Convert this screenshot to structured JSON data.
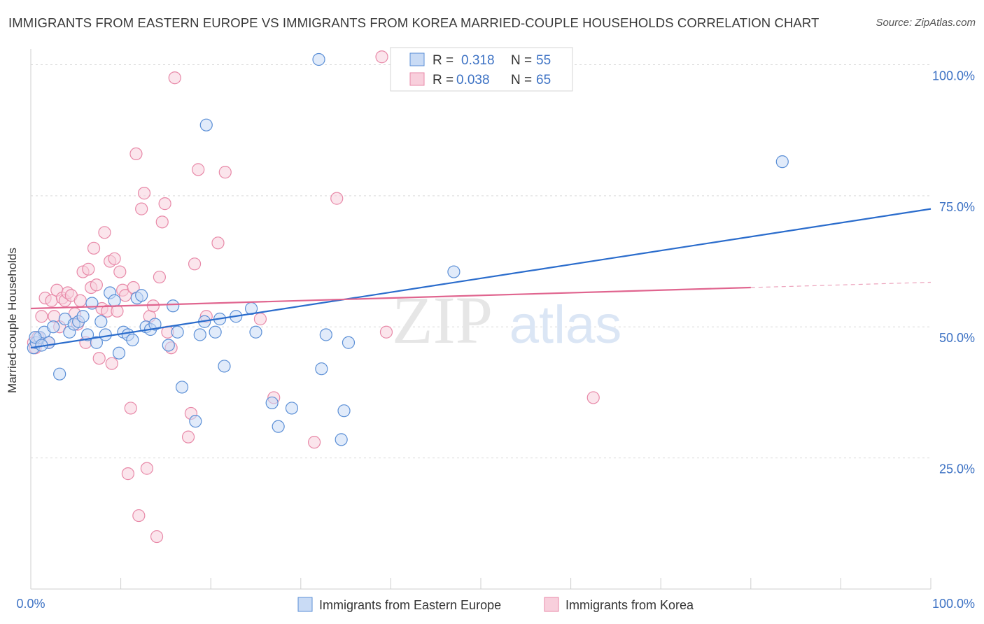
{
  "header": {
    "title": "IMMIGRANTS FROM EASTERN EUROPE VS IMMIGRANTS FROM KOREA MARRIED-COUPLE HOUSEHOLDS CORRELATION CHART",
    "source": "Source: ZipAtlas.com"
  },
  "watermark": {
    "zip": "ZIP",
    "atlas": "atlas"
  },
  "colors": {
    "blue": "#5b8fd6",
    "blue_fill": "#c9dbf5",
    "blue_line": "#2a6ccc",
    "pink": "#e889a8",
    "pink_fill": "#f8cfdc",
    "pink_line": "#e0658f",
    "tick_text": "#3d72c4",
    "grid": "#d9d9d9"
  },
  "legend": {
    "rows": [
      {
        "r_label": "R = ",
        "r_value": "0.318",
        "n_label": "N = ",
        "n_value": "55",
        "series": "blue"
      },
      {
        "r_label": "R = ",
        "r_value": "0.038",
        "n_label": "N = ",
        "n_value": "65",
        "series": "pink"
      }
    ]
  },
  "chart_data": {
    "type": "scatter",
    "title": "IMMIGRANTS FROM EASTERN EUROPE VS IMMIGRANTS FROM KOREA MARRIED-COUPLE HOUSEHOLDS CORRELATION CHART",
    "xlabel": "",
    "ylabel": "Married-couple Households",
    "xlim": [
      0,
      100
    ],
    "ylim": [
      0,
      103
    ],
    "x_tick_labels": [
      "0.0%",
      "100.0%"
    ],
    "y_ticks": [
      25,
      50,
      75,
      100
    ],
    "y_tick_labels": [
      "25.0%",
      "50.0%",
      "75.0%",
      "100.0%"
    ],
    "grid": true,
    "legend_position": "bottom",
    "series": [
      {
        "name": "Immigrants from Eastern Europe",
        "color": "blue",
        "trend": {
          "x": [
            0,
            100
          ],
          "y": [
            46.0,
            72.5
          ],
          "dashed_from": null
        },
        "points": [
          [
            0.3,
            46
          ],
          [
            0.6,
            47
          ],
          [
            1.0,
            48
          ],
          [
            1.5,
            49
          ],
          [
            2.0,
            47
          ],
          [
            2.5,
            50
          ],
          [
            3.2,
            41
          ],
          [
            3.8,
            51.5
          ],
          [
            4.3,
            49
          ],
          [
            4.8,
            50.5
          ],
          [
            5.3,
            51
          ],
          [
            5.8,
            52
          ],
          [
            6.3,
            48.5
          ],
          [
            6.8,
            54.5
          ],
          [
            7.3,
            47
          ],
          [
            7.8,
            51
          ],
          [
            8.3,
            48.5
          ],
          [
            8.8,
            56.5
          ],
          [
            9.3,
            55
          ],
          [
            9.8,
            45
          ],
          [
            10.3,
            49
          ],
          [
            10.8,
            48.5
          ],
          [
            11.3,
            47.5
          ],
          [
            11.8,
            55.5
          ],
          [
            12.3,
            56
          ],
          [
            12.8,
            50
          ],
          [
            13.3,
            49.5
          ],
          [
            13.8,
            50.5
          ],
          [
            15.3,
            46.5
          ],
          [
            15.8,
            54
          ],
          [
            16.3,
            49
          ],
          [
            16.8,
            38.5
          ],
          [
            18.3,
            32
          ],
          [
            18.8,
            48.5
          ],
          [
            19.3,
            51
          ],
          [
            19.5,
            88.5
          ],
          [
            20.5,
            49
          ],
          [
            21.0,
            51.5
          ],
          [
            21.5,
            42.5
          ],
          [
            22.8,
            52
          ],
          [
            24.5,
            53.5
          ],
          [
            25.0,
            49
          ],
          [
            26.8,
            35.5
          ],
          [
            27.5,
            31
          ],
          [
            29.0,
            34.5
          ],
          [
            32.0,
            101
          ],
          [
            32.3,
            42
          ],
          [
            32.8,
            48.5
          ],
          [
            34.5,
            28.5
          ],
          [
            34.8,
            34
          ],
          [
            35.3,
            47
          ],
          [
            47.0,
            60.5
          ],
          [
            83.5,
            81.5
          ],
          [
            0.5,
            48
          ],
          [
            1.2,
            46.5
          ]
        ]
      },
      {
        "name": "Immigrants from Korea",
        "color": "pink",
        "trend": {
          "x": [
            0,
            100
          ],
          "y": [
            53.5,
            58.5
          ],
          "dashed_from": 80
        },
        "points": [
          [
            0.3,
            47
          ],
          [
            0.8,
            48
          ],
          [
            1.2,
            52
          ],
          [
            1.6,
            55.5
          ],
          [
            2.0,
            47
          ],
          [
            2.3,
            55
          ],
          [
            2.6,
            52
          ],
          [
            2.9,
            57
          ],
          [
            3.2,
            50
          ],
          [
            3.5,
            55.5
          ],
          [
            3.8,
            55
          ],
          [
            4.1,
            56.5
          ],
          [
            4.5,
            56
          ],
          [
            4.9,
            52.5
          ],
          [
            5.2,
            50.5
          ],
          [
            5.5,
            55
          ],
          [
            5.8,
            60.5
          ],
          [
            6.1,
            47
          ],
          [
            6.4,
            61
          ],
          [
            6.7,
            57.5
          ],
          [
            7.0,
            65
          ],
          [
            7.3,
            58
          ],
          [
            7.6,
            44
          ],
          [
            7.9,
            53.5
          ],
          [
            8.2,
            68
          ],
          [
            8.5,
            53
          ],
          [
            8.8,
            62.5
          ],
          [
            9.0,
            43
          ],
          [
            9.3,
            63
          ],
          [
            9.6,
            53
          ],
          [
            9.9,
            60.5
          ],
          [
            10.2,
            57
          ],
          [
            10.5,
            56
          ],
          [
            10.8,
            22
          ],
          [
            11.1,
            34.5
          ],
          [
            11.4,
            57.5
          ],
          [
            11.7,
            83
          ],
          [
            12.0,
            14
          ],
          [
            12.3,
            72.5
          ],
          [
            12.6,
            75.5
          ],
          [
            12.9,
            23
          ],
          [
            13.2,
            52
          ],
          [
            13.6,
            54
          ],
          [
            14.0,
            10
          ],
          [
            14.3,
            59.5
          ],
          [
            14.6,
            70
          ],
          [
            14.9,
            73.5
          ],
          [
            15.2,
            49
          ],
          [
            15.6,
            46
          ],
          [
            16.0,
            97.5
          ],
          [
            17.5,
            29
          ],
          [
            17.8,
            33.5
          ],
          [
            18.2,
            62
          ],
          [
            18.6,
            80
          ],
          [
            19.5,
            52
          ],
          [
            20.8,
            66
          ],
          [
            21.6,
            79.5
          ],
          [
            25.5,
            51.5
          ],
          [
            27.0,
            36.5
          ],
          [
            31.5,
            28
          ],
          [
            34.0,
            74.5
          ],
          [
            39.0,
            101.5
          ],
          [
            39.5,
            49
          ],
          [
            62.5,
            36.5
          ],
          [
            0.5,
            46
          ]
        ]
      }
    ]
  },
  "bottom_legend": {
    "items": [
      {
        "label": "Immigrants from Eastern Europe",
        "color": "blue"
      },
      {
        "label": "Immigrants from Korea",
        "color": "pink"
      }
    ]
  }
}
